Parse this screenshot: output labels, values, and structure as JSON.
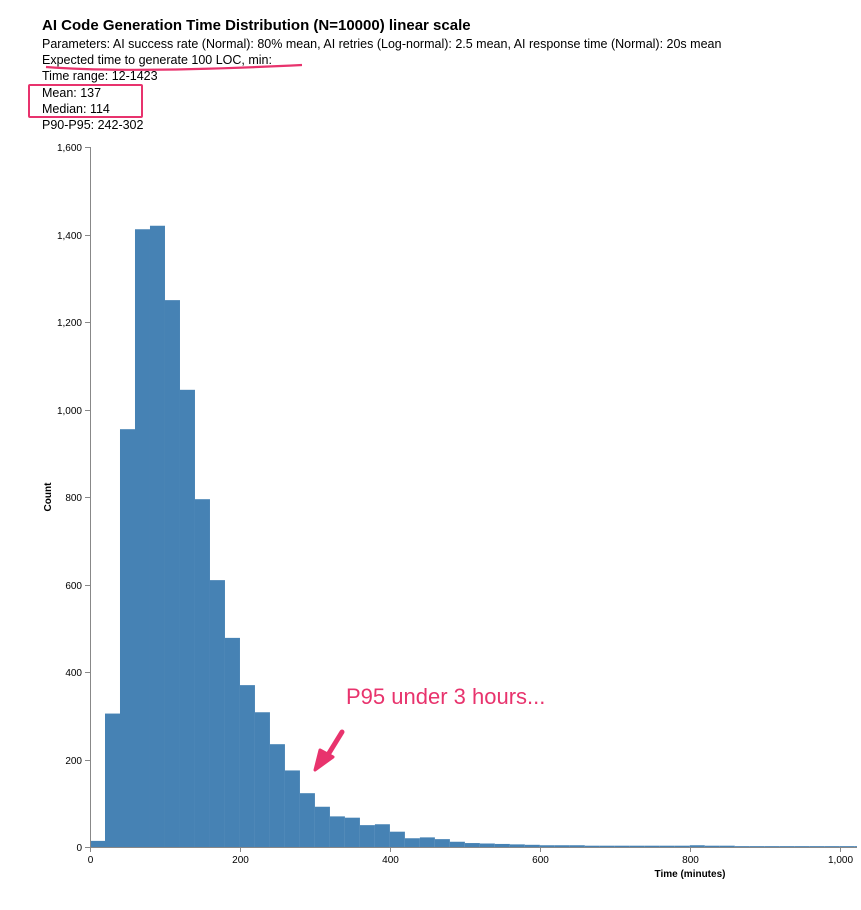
{
  "header": {
    "title": "AI Code Generation Time Distribution (N=10000) linear scale",
    "parameters": "Parameters: AI success rate (Normal): 80% mean, AI retries (Log-normal): 2.5 mean, AI response time (Normal): 20s mean",
    "expected": "Expected time to generate 100 LOC, min:",
    "time_range": "Time range: 12-1423",
    "mean": "Mean: 137",
    "median": "Median: 114",
    "p90_p95": "P90-P95: 242-302"
  },
  "annotation": {
    "text": "P95 under 3 hours...",
    "color": "#e8336d"
  },
  "chart_data": {
    "type": "bar",
    "bar_color": "#4682b4",
    "bin_width": 20,
    "bins_start": [
      0,
      20,
      40,
      60,
      80,
      100,
      120,
      140,
      160,
      180,
      200,
      220,
      240,
      260,
      280,
      300,
      320,
      340,
      360,
      380,
      400,
      420,
      440,
      460,
      480,
      500,
      520,
      540,
      560,
      580,
      600,
      620,
      640,
      660,
      680,
      700,
      720,
      740,
      760,
      780,
      800,
      820,
      840,
      860,
      880,
      900,
      920,
      940,
      960,
      980,
      1000,
      1020
    ],
    "values": [
      14,
      305,
      955,
      1412,
      1420,
      1250,
      1045,
      795,
      610,
      478,
      370,
      308,
      235,
      175,
      123,
      92,
      70,
      67,
      50,
      52,
      35,
      20,
      22,
      18,
      12,
      9,
      8,
      7,
      6,
      5,
      4,
      4,
      4,
      3,
      3,
      3,
      3,
      3,
      3,
      3,
      4,
      3,
      3,
      2,
      2,
      2,
      2,
      2,
      2,
      2,
      2,
      2
    ],
    "xlabel": "Time (minutes)",
    "ylabel": "Count",
    "xlim": [
      0,
      1023
    ],
    "ylim": [
      0,
      1600
    ],
    "xticks": [
      0,
      200,
      400,
      600,
      800,
      1000
    ],
    "yticks": [
      0,
      200,
      400,
      600,
      800,
      1000,
      1200,
      1400,
      1600
    ],
    "grid": false
  }
}
